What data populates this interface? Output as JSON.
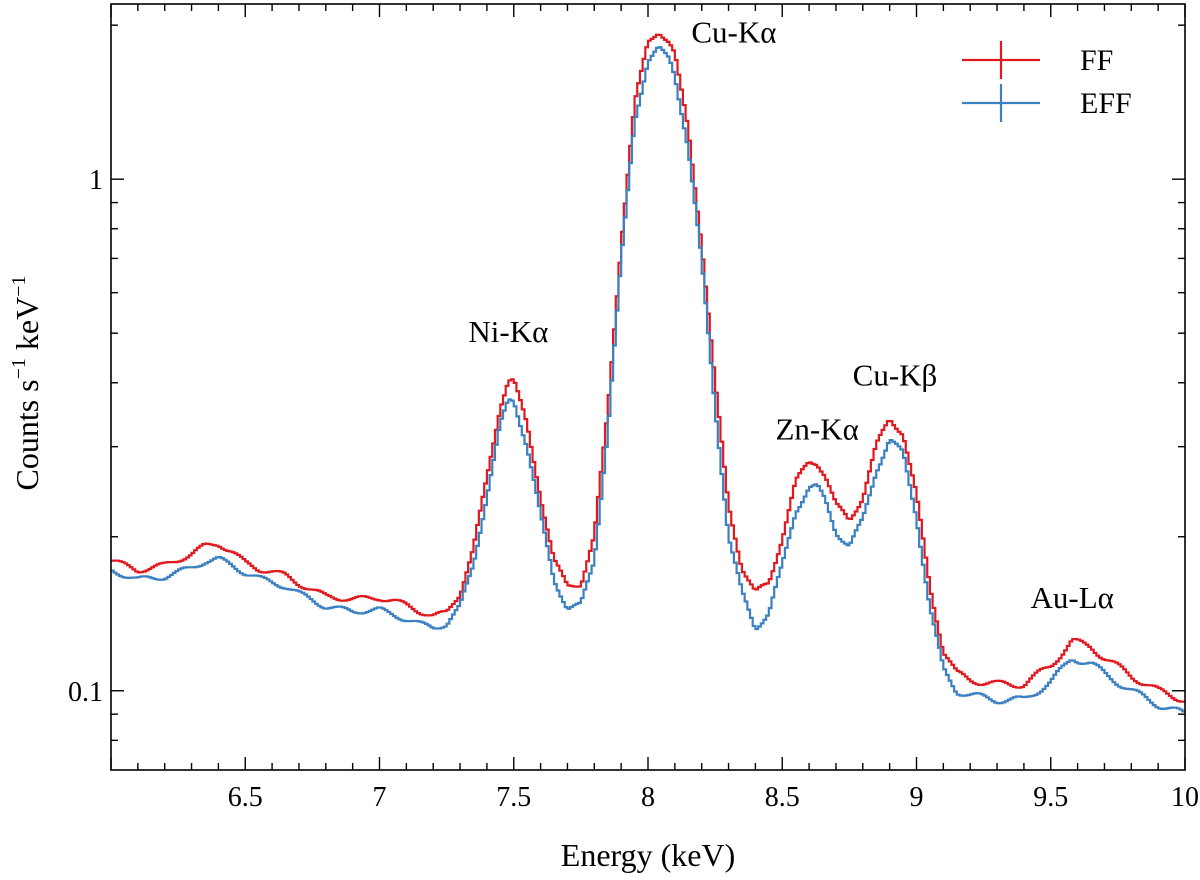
{
  "chart_data": {
    "type": "line",
    "title": "",
    "xlabel": "Energy (keV)",
    "ylabel": {
      "main": "Counts s",
      "exp1": "−1",
      "mid": " keV",
      "exp2": "−1"
    },
    "xlim": [
      6.0,
      10.0
    ],
    "ylim": [
      0.07,
      2.2
    ],
    "yscale": "log",
    "x_ticks": [
      {
        "value": 6.5,
        "label": "6.5"
      },
      {
        "value": 7.0,
        "label": "7"
      },
      {
        "value": 7.5,
        "label": "7.5"
      },
      {
        "value": 8.0,
        "label": "8"
      },
      {
        "value": 8.5,
        "label": "8.5"
      },
      {
        "value": 9.0,
        "label": "9"
      },
      {
        "value": 9.5,
        "label": "9.5"
      },
      {
        "value": 10.0,
        "label": "10"
      }
    ],
    "y_ticks": [
      {
        "value": 0.1,
        "label": "0.1"
      },
      {
        "value": 1.0,
        "label": "1"
      }
    ],
    "grid": false,
    "legend_position": "top-right",
    "series": [
      {
        "name": "FF",
        "color": "#e0191f",
        "x": [
          6.0,
          6.1,
          6.2,
          6.3,
          6.35,
          6.4,
          6.45,
          6.5,
          6.55,
          6.6,
          6.65,
          6.7,
          6.8,
          6.9,
          7.0,
          7.05,
          7.1,
          7.15,
          7.2,
          7.25,
          7.3,
          7.35,
          7.4,
          7.45,
          7.48,
          7.5,
          7.55,
          7.6,
          7.65,
          7.7,
          7.75,
          7.8,
          7.85,
          7.9,
          7.95,
          8.0,
          8.04,
          8.08,
          8.1,
          8.15,
          8.2,
          8.25,
          8.3,
          8.35,
          8.4,
          8.45,
          8.5,
          8.55,
          8.6,
          8.63,
          8.66,
          8.7,
          8.75,
          8.8,
          8.85,
          8.9,
          8.95,
          9.0,
          9.05,
          9.1,
          9.15,
          9.2,
          9.3,
          9.4,
          9.5,
          9.58,
          9.65,
          9.7,
          9.8,
          9.9,
          10.0
        ],
        "values": [
          0.18,
          0.172,
          0.176,
          0.185,
          0.192,
          0.194,
          0.187,
          0.178,
          0.173,
          0.171,
          0.168,
          0.162,
          0.153,
          0.151,
          0.152,
          0.15,
          0.147,
          0.143,
          0.14,
          0.142,
          0.155,
          0.19,
          0.26,
          0.36,
          0.405,
          0.405,
          0.33,
          0.24,
          0.18,
          0.16,
          0.162,
          0.2,
          0.35,
          0.75,
          1.4,
          1.85,
          1.95,
          1.85,
          1.75,
          1.25,
          0.75,
          0.4,
          0.23,
          0.175,
          0.155,
          0.162,
          0.2,
          0.255,
          0.28,
          0.28,
          0.265,
          0.23,
          0.215,
          0.24,
          0.3,
          0.34,
          0.32,
          0.24,
          0.16,
          0.12,
          0.108,
          0.105,
          0.103,
          0.103,
          0.112,
          0.125,
          0.122,
          0.116,
          0.107,
          0.1,
          0.096
        ]
      },
      {
        "name": "EFF",
        "color": "#3a80c2",
        "x": [
          6.0,
          6.1,
          6.2,
          6.3,
          6.35,
          6.4,
          6.45,
          6.5,
          6.55,
          6.6,
          6.65,
          6.7,
          6.8,
          6.9,
          7.0,
          7.05,
          7.1,
          7.15,
          7.2,
          7.25,
          7.3,
          7.35,
          7.4,
          7.45,
          7.48,
          7.5,
          7.55,
          7.6,
          7.65,
          7.7,
          7.75,
          7.8,
          7.85,
          7.9,
          7.95,
          8.0,
          8.04,
          8.08,
          8.1,
          8.15,
          8.2,
          8.25,
          8.3,
          8.35,
          8.4,
          8.45,
          8.5,
          8.55,
          8.6,
          8.63,
          8.66,
          8.7,
          8.75,
          8.8,
          8.85,
          8.9,
          8.95,
          9.0,
          9.05,
          9.1,
          9.15,
          9.2,
          9.3,
          9.4,
          9.5,
          9.58,
          9.65,
          9.7,
          9.8,
          9.9,
          10.0
        ],
        "values": [
          0.172,
          0.165,
          0.167,
          0.174,
          0.179,
          0.181,
          0.176,
          0.17,
          0.166,
          0.163,
          0.16,
          0.155,
          0.146,
          0.143,
          0.144,
          0.141,
          0.138,
          0.135,
          0.133,
          0.135,
          0.146,
          0.177,
          0.24,
          0.33,
          0.37,
          0.37,
          0.3,
          0.22,
          0.165,
          0.145,
          0.147,
          0.18,
          0.32,
          0.69,
          1.3,
          1.7,
          1.8,
          1.72,
          1.6,
          1.15,
          0.69,
          0.36,
          0.2,
          0.155,
          0.133,
          0.142,
          0.175,
          0.225,
          0.25,
          0.25,
          0.235,
          0.205,
          0.192,
          0.215,
          0.27,
          0.31,
          0.29,
          0.22,
          0.145,
          0.11,
          0.1,
          0.098,
          0.096,
          0.096,
          0.104,
          0.116,
          0.113,
          0.108,
          0.1,
          0.094,
          0.09
        ]
      }
    ],
    "annotations": [
      {
        "text": "Cu-Kα",
        "x": 8.32,
        "y": 1.85
      },
      {
        "text": "Ni-Kα",
        "x": 7.48,
        "y": 0.48
      },
      {
        "text": "Zn-Kα",
        "x": 8.63,
        "y": 0.31
      },
      {
        "text": "Cu-Kβ",
        "x": 8.92,
        "y": 0.395
      },
      {
        "text": "Au-Lα",
        "x": 9.58,
        "y": 0.145
      }
    ],
    "legend": [
      {
        "label": "FF",
        "color": "#e0191f"
      },
      {
        "label": "EFF",
        "color": "#3a80c2"
      }
    ]
  }
}
